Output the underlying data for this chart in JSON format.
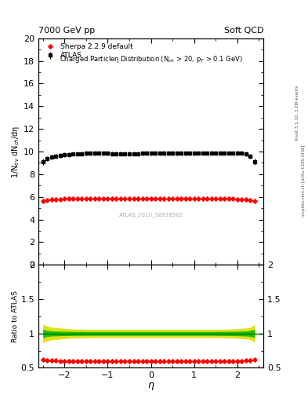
{
  "title_left": "7000 GeV pp",
  "title_right": "Soft QCD",
  "plot_title": "Charged Particleη Distribution (N$_{ch}$ > 20, p$_T$ > 0.1 GeV)",
  "ylabel_main": "1/N$_{ev}$ dN$_{ch}$/dη",
  "ylabel_ratio": "Ratio to ATLAS",
  "xlabel": "η",
  "right_label_top": "Rivet 3.1.10, 3.2M events",
  "right_label_bot": "mcplots.cern.ch [arXiv:1306.3436]",
  "watermark": "ATLAS_2010_S8918562",
  "ylim_main": [
    0,
    20
  ],
  "ylim_ratio": [
    0.5,
    2.0
  ],
  "xlim": [
    -2.6,
    2.6
  ],
  "atlas_eta": [
    -2.5,
    -2.4,
    -2.3,
    -2.2,
    -2.1,
    -2.0,
    -1.9,
    -1.8,
    -1.7,
    -1.6,
    -1.5,
    -1.4,
    -1.3,
    -1.2,
    -1.1,
    -1.0,
    -0.9,
    -0.8,
    -0.7,
    -0.6,
    -0.5,
    -0.4,
    -0.3,
    -0.2,
    -0.1,
    0.0,
    0.1,
    0.2,
    0.3,
    0.4,
    0.5,
    0.6,
    0.7,
    0.8,
    0.9,
    1.0,
    1.1,
    1.2,
    1.3,
    1.4,
    1.5,
    1.6,
    1.7,
    1.8,
    1.9,
    2.0,
    2.1,
    2.2,
    2.3,
    2.4
  ],
  "atlas_vals": [
    9.1,
    9.35,
    9.5,
    9.6,
    9.65,
    9.72,
    9.75,
    9.78,
    9.8,
    9.82,
    9.83,
    9.83,
    9.83,
    9.84,
    9.83,
    9.83,
    9.82,
    9.82,
    9.82,
    9.82,
    9.82,
    9.82,
    9.82,
    9.83,
    9.83,
    9.83,
    9.83,
    9.83,
    9.83,
    9.83,
    9.83,
    9.83,
    9.83,
    9.83,
    9.83,
    9.83,
    9.84,
    9.84,
    9.84,
    9.84,
    9.85,
    9.85,
    9.86,
    9.87,
    9.88,
    9.89,
    9.88,
    9.78,
    9.6,
    9.1
  ],
  "atlas_err": [
    0.3,
    0.2,
    0.2,
    0.2,
    0.2,
    0.2,
    0.15,
    0.15,
    0.15,
    0.15,
    0.15,
    0.15,
    0.15,
    0.15,
    0.15,
    0.15,
    0.15,
    0.15,
    0.15,
    0.15,
    0.15,
    0.15,
    0.15,
    0.15,
    0.15,
    0.15,
    0.15,
    0.15,
    0.15,
    0.15,
    0.15,
    0.15,
    0.15,
    0.15,
    0.15,
    0.15,
    0.15,
    0.15,
    0.15,
    0.15,
    0.15,
    0.15,
    0.15,
    0.15,
    0.15,
    0.15,
    0.15,
    0.2,
    0.2,
    0.3
  ],
  "sherpa_eta": [
    -2.5,
    -2.4,
    -2.3,
    -2.2,
    -2.1,
    -2.0,
    -1.9,
    -1.8,
    -1.7,
    -1.6,
    -1.5,
    -1.4,
    -1.3,
    -1.2,
    -1.1,
    -1.0,
    -0.9,
    -0.8,
    -0.7,
    -0.6,
    -0.5,
    -0.4,
    -0.3,
    -0.2,
    -0.1,
    0.0,
    0.1,
    0.2,
    0.3,
    0.4,
    0.5,
    0.6,
    0.7,
    0.8,
    0.9,
    1.0,
    1.1,
    1.2,
    1.3,
    1.4,
    1.5,
    1.6,
    1.7,
    1.8,
    1.9,
    2.0,
    2.1,
    2.2,
    2.3,
    2.4
  ],
  "sherpa_vals": [
    5.6,
    5.7,
    5.75,
    5.78,
    5.8,
    5.82,
    5.83,
    5.84,
    5.85,
    5.85,
    5.86,
    5.86,
    5.86,
    5.86,
    5.86,
    5.86,
    5.86,
    5.86,
    5.86,
    5.86,
    5.86,
    5.86,
    5.86,
    5.86,
    5.86,
    5.86,
    5.86,
    5.86,
    5.86,
    5.86,
    5.86,
    5.86,
    5.86,
    5.86,
    5.86,
    5.86,
    5.86,
    5.86,
    5.86,
    5.86,
    5.85,
    5.85,
    5.84,
    5.83,
    5.82,
    5.8,
    5.78,
    5.75,
    5.7,
    5.6
  ],
  "ratio_sherpa": [
    0.615,
    0.61,
    0.607,
    0.604,
    0.602,
    0.6,
    0.598,
    0.597,
    0.597,
    0.596,
    0.596,
    0.596,
    0.596,
    0.595,
    0.595,
    0.595,
    0.595,
    0.595,
    0.595,
    0.595,
    0.595,
    0.595,
    0.595,
    0.595,
    0.595,
    0.595,
    0.595,
    0.595,
    0.595,
    0.595,
    0.595,
    0.595,
    0.595,
    0.595,
    0.595,
    0.595,
    0.595,
    0.595,
    0.595,
    0.595,
    0.596,
    0.596,
    0.597,
    0.597,
    0.598,
    0.6,
    0.602,
    0.604,
    0.607,
    0.615
  ],
  "ratio_band_yellow_lo": [
    0.87,
    0.89,
    0.91,
    0.91,
    0.92,
    0.925,
    0.93,
    0.935,
    0.936,
    0.937,
    0.938,
    0.939,
    0.94,
    0.94,
    0.94,
    0.94,
    0.94,
    0.94,
    0.94,
    0.94,
    0.94,
    0.94,
    0.94,
    0.94,
    0.94,
    0.94,
    0.94,
    0.94,
    0.94,
    0.94,
    0.94,
    0.94,
    0.94,
    0.94,
    0.94,
    0.94,
    0.94,
    0.94,
    0.94,
    0.94,
    0.939,
    0.938,
    0.937,
    0.936,
    0.935,
    0.93,
    0.925,
    0.92,
    0.91,
    0.87
  ],
  "ratio_band_yellow_hi": [
    1.13,
    1.11,
    1.09,
    1.09,
    1.08,
    1.075,
    1.07,
    1.065,
    1.064,
    1.063,
    1.062,
    1.061,
    1.06,
    1.06,
    1.06,
    1.06,
    1.06,
    1.06,
    1.06,
    1.06,
    1.06,
    1.06,
    1.06,
    1.06,
    1.06,
    1.06,
    1.06,
    1.06,
    1.06,
    1.06,
    1.06,
    1.06,
    1.06,
    1.06,
    1.06,
    1.06,
    1.06,
    1.06,
    1.06,
    1.06,
    1.061,
    1.062,
    1.063,
    1.064,
    1.065,
    1.07,
    1.075,
    1.08,
    1.09,
    1.13
  ],
  "ratio_band_green_lo": [
    0.94,
    0.955,
    0.963,
    0.965,
    0.967,
    0.968,
    0.969,
    0.97,
    0.971,
    0.971,
    0.972,
    0.972,
    0.972,
    0.972,
    0.972,
    0.972,
    0.972,
    0.972,
    0.972,
    0.972,
    0.972,
    0.972,
    0.972,
    0.972,
    0.972,
    0.972,
    0.972,
    0.972,
    0.972,
    0.972,
    0.972,
    0.972,
    0.972,
    0.972,
    0.972,
    0.972,
    0.972,
    0.972,
    0.972,
    0.972,
    0.971,
    0.971,
    0.97,
    0.969,
    0.968,
    0.967,
    0.965,
    0.963,
    0.955,
    0.94
  ],
  "ratio_band_green_hi": [
    1.06,
    1.045,
    1.037,
    1.035,
    1.033,
    1.032,
    1.031,
    1.03,
    1.029,
    1.029,
    1.028,
    1.028,
    1.028,
    1.028,
    1.028,
    1.028,
    1.028,
    1.028,
    1.028,
    1.028,
    1.028,
    1.028,
    1.028,
    1.028,
    1.028,
    1.028,
    1.028,
    1.028,
    1.028,
    1.028,
    1.028,
    1.028,
    1.028,
    1.028,
    1.028,
    1.028,
    1.028,
    1.028,
    1.028,
    1.028,
    1.029,
    1.029,
    1.03,
    1.031,
    1.032,
    1.033,
    1.035,
    1.037,
    1.045,
    1.06
  ],
  "atlas_color": "#000000",
  "sherpa_color": "#ff0000",
  "band_green": "#00bb00",
  "band_yellow": "#dddd00",
  "ratio_line_color": "#007700",
  "yticks_main": [
    0,
    2,
    4,
    6,
    8,
    10,
    12,
    14,
    16,
    18,
    20
  ],
  "yticks_ratio": [
    0.5,
    1.0,
    1.5,
    2.0
  ],
  "ytick_labels_ratio": [
    "0.5",
    "1",
    "1.5",
    "2"
  ]
}
